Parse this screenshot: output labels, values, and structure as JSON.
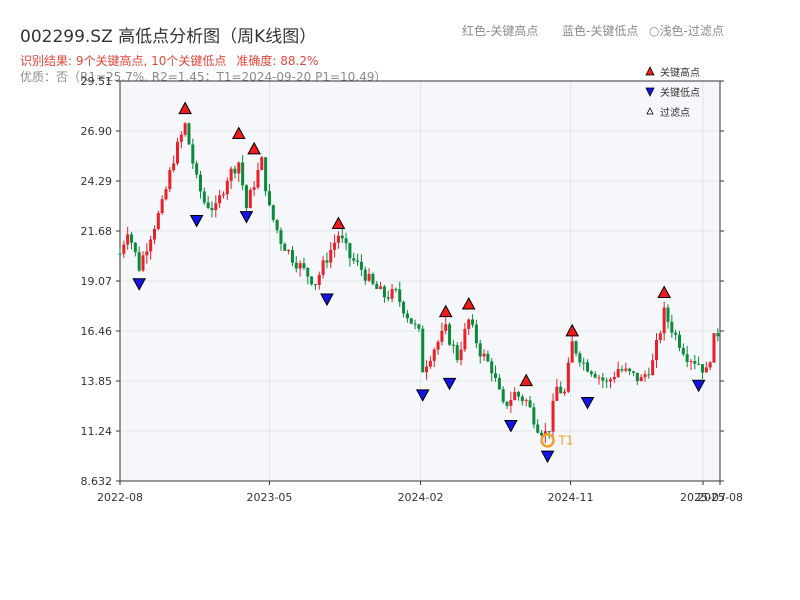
{
  "title": "002299.SZ 高低点分析图（周K线图）",
  "legend_top": {
    "red": "红色-关键高点",
    "blue": "蓝色-关键低点",
    "filtered": "浅色-过滤点"
  },
  "result": {
    "summary": "识别结果: 9个关键高点, 10个关键低点",
    "accuracy": "准确度: 88.2%"
  },
  "quality": "优质：否（R1=25.7%, R2=1.45；T1=2024-09-20 P1=10.49）",
  "colors": {
    "up": "#e8202a",
    "down": "#0a8a3a",
    "high_marker": "#ee1c1c",
    "low_marker": "#1414e6",
    "t1": "#f0a030",
    "plot_bg": "#f5f7fa"
  },
  "chart_data": {
    "type": "candlestick",
    "y_ticks": [
      "29.51",
      "26.90",
      "24.29",
      "21.68",
      "19.07",
      "16.46",
      "13.85",
      "11.24",
      "8.632"
    ],
    "ylim": [
      8.632,
      29.51
    ],
    "x_ticks": [
      {
        "date": "2022-08-01",
        "label": "2022-08"
      },
      {
        "date": "2023-05-01",
        "label": "2023-05"
      },
      {
        "date": "2024-02-01",
        "label": "2024-02"
      },
      {
        "date": "2024-11-01",
        "label": "2024-11"
      },
      {
        "date": "2025-07-01",
        "label": "2025-07"
      },
      {
        "date": "2025-08-01",
        "label": "2025-08"
      }
    ],
    "xlim": [
      "2022-08-01",
      "2025-08-01"
    ],
    "legend": [
      {
        "label": "关键高点",
        "marker": "triangle-up",
        "color": "#ee1c1c"
      },
      {
        "label": "关键低点",
        "marker": "triangle-down",
        "color": "#1414e6"
      },
      {
        "label": "过滤点",
        "marker": "triangle-up-outline",
        "color": "#ffffff"
      }
    ],
    "close_path": [
      [
        "2022-08-01",
        20.5
      ],
      [
        "2022-08-15",
        21.8
      ],
      [
        "2022-09-05",
        19.8
      ],
      [
        "2022-09-26",
        21.5
      ],
      [
        "2022-10-17",
        23.0
      ],
      [
        "2022-11-07",
        25.5
      ],
      [
        "2022-11-28",
        27.2
      ],
      [
        "2022-12-19",
        24.3
      ],
      [
        "2023-01-02",
        23.2
      ],
      [
        "2023-01-23",
        22.8
      ],
      [
        "2023-02-13",
        24.5
      ],
      [
        "2023-03-06",
        25.3
      ],
      [
        "2023-03-20",
        22.9
      ],
      [
        "2023-04-03",
        24.2
      ],
      [
        "2023-04-17",
        25.3
      ],
      [
        "2023-05-01",
        22.8
      ],
      [
        "2023-05-22",
        21.2
      ],
      [
        "2023-06-12",
        20.3
      ],
      [
        "2023-07-03",
        19.6
      ],
      [
        "2023-07-24",
        19.0
      ],
      [
        "2023-08-14",
        20.3
      ],
      [
        "2023-09-04",
        21.5
      ],
      [
        "2023-09-25",
        20.3
      ],
      [
        "2023-10-16",
        19.7
      ],
      [
        "2023-11-06",
        18.8
      ],
      [
        "2023-11-27",
        18.3
      ],
      [
        "2023-12-18",
        18.4
      ],
      [
        "2024-01-08",
        17.3
      ],
      [
        "2024-01-29",
        16.3
      ],
      [
        "2024-02-05",
        14.5
      ],
      [
        "2024-02-26",
        15.6
      ],
      [
        "2024-03-18",
        16.5
      ],
      [
        "2024-04-08",
        15.1
      ],
      [
        "2024-04-29",
        17.0
      ],
      [
        "2024-05-20",
        15.4
      ],
      [
        "2024-06-10",
        14.5
      ],
      [
        "2024-07-01",
        12.5
      ],
      [
        "2024-07-22",
        13.2
      ],
      [
        "2024-08-12",
        12.8
      ],
      [
        "2024-09-02",
        11.5
      ],
      [
        "2024-09-20",
        11.0
      ],
      [
        "2024-10-07",
        13.5
      ],
      [
        "2024-10-21",
        13.2
      ],
      [
        "2024-11-04",
        15.8
      ],
      [
        "2024-11-25",
        14.8
      ],
      [
        "2024-12-16",
        14.3
      ],
      [
        "2025-01-06",
        13.7
      ],
      [
        "2025-01-27",
        14.5
      ],
      [
        "2025-02-17",
        14.2
      ],
      [
        "2025-03-10",
        13.9
      ],
      [
        "2025-03-31",
        14.8
      ],
      [
        "2025-04-21",
        17.4
      ],
      [
        "2025-05-12",
        16.2
      ],
      [
        "2025-06-02",
        15.2
      ],
      [
        "2025-06-23",
        14.8
      ],
      [
        "2025-07-07",
        14.3
      ],
      [
        "2025-07-21",
        16.0
      ],
      [
        "2025-08-01",
        16.6
      ]
    ],
    "key_highs": [
      {
        "date": "2022-11-28",
        "price": 27.6
      },
      {
        "date": "2023-03-06",
        "price": 26.3
      },
      {
        "date": "2023-04-03",
        "price": 25.5
      },
      {
        "date": "2023-09-04",
        "price": 21.6
      },
      {
        "date": "2024-03-18",
        "price": 17.0
      },
      {
        "date": "2024-04-29",
        "price": 17.4
      },
      {
        "date": "2024-08-12",
        "price": 13.4
      },
      {
        "date": "2024-11-04",
        "price": 16.0
      },
      {
        "date": "2025-04-21",
        "price": 18.0
      }
    ],
    "key_lows": [
      {
        "date": "2022-09-05",
        "price": 19.4
      },
      {
        "date": "2022-12-19",
        "price": 22.7
      },
      {
        "date": "2023-03-20",
        "price": 22.9
      },
      {
        "date": "2023-08-14",
        "price": 18.6
      },
      {
        "date": "2024-02-05",
        "price": 13.6
      },
      {
        "date": "2024-03-25",
        "price": 14.2
      },
      {
        "date": "2024-07-15",
        "price": 12.0
      },
      {
        "date": "2024-09-20",
        "price": 10.4
      },
      {
        "date": "2024-12-02",
        "price": 13.2
      },
      {
        "date": "2025-06-23",
        "price": 14.1
      }
    ],
    "t1": {
      "label": "T1",
      "date": "2024-09-20",
      "price": 10.49
    }
  }
}
